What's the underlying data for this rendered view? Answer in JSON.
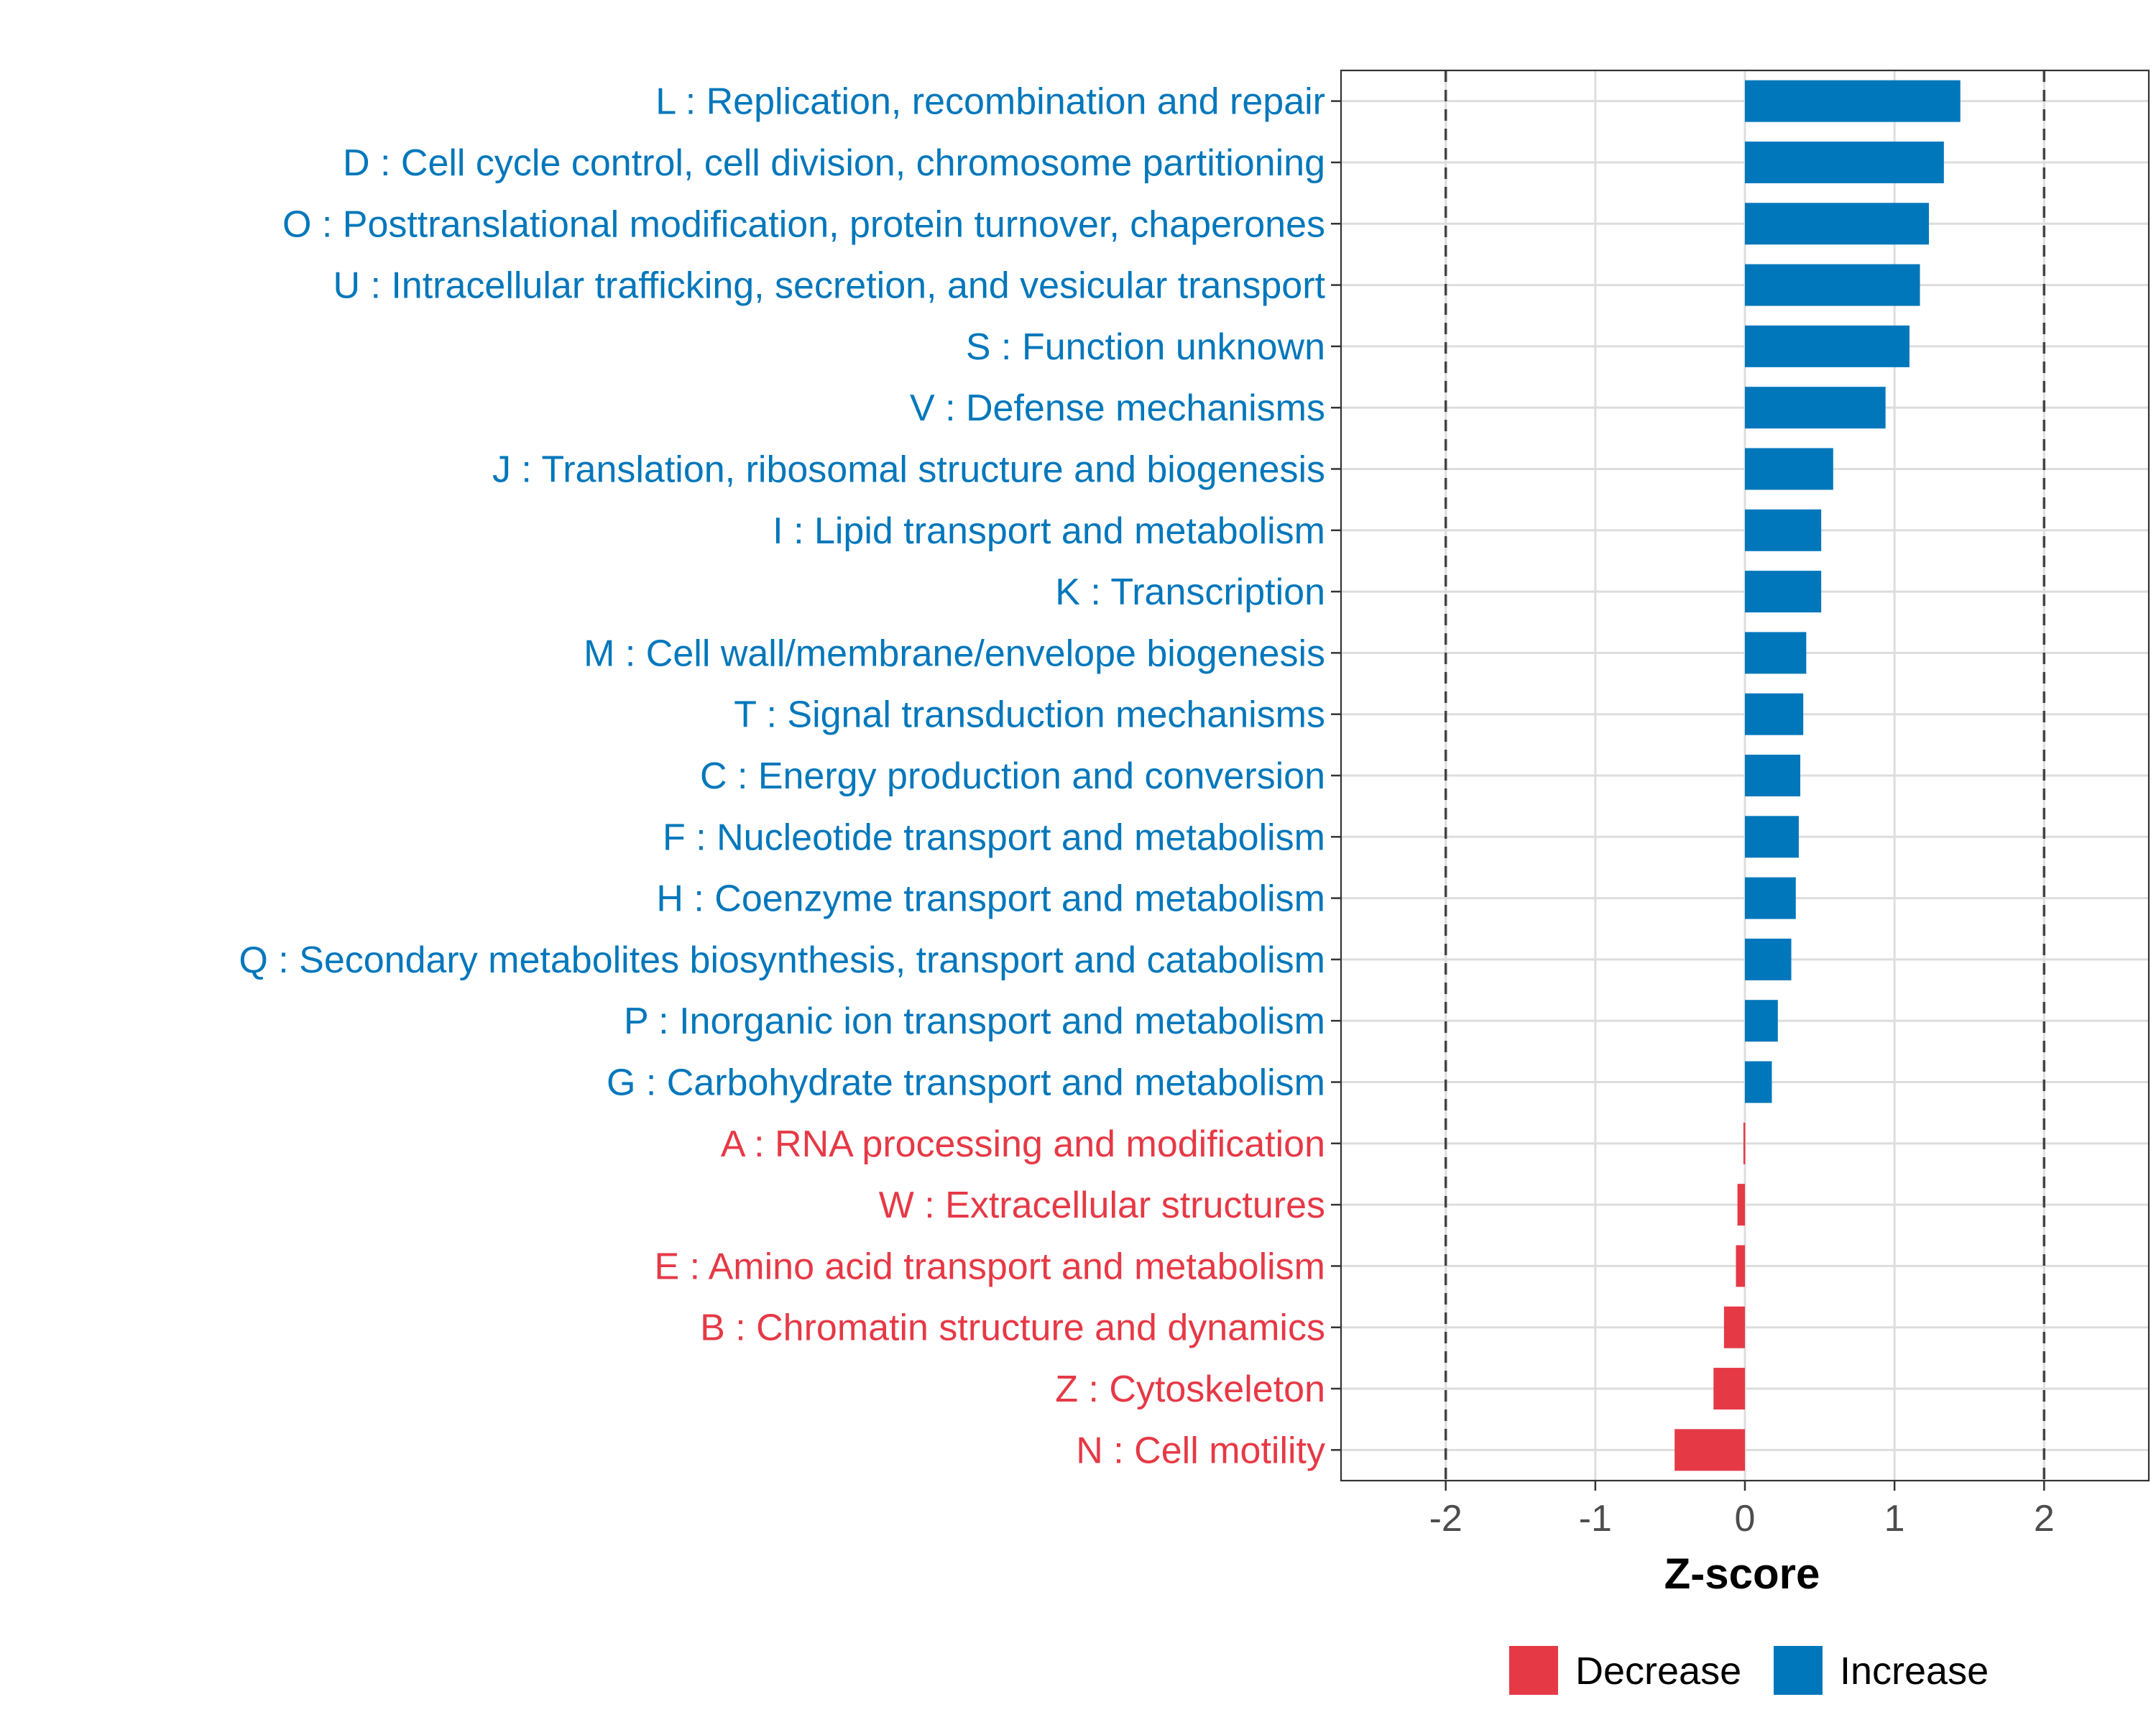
{
  "chart_data": {
    "type": "bar",
    "orientation": "horizontal",
    "xlabel": "Z-score",
    "ylabel": "",
    "xlim": [
      -2.7,
      2.7
    ],
    "xticks": [
      -2,
      -1,
      0,
      1,
      2
    ],
    "xtick_labels": [
      "-2",
      "-1",
      "0",
      "1",
      "2"
    ],
    "reference_lines": [
      -2,
      2
    ],
    "grid": true,
    "legend_position": "bottom",
    "colors": {
      "Decrease": "#E63946",
      "Increase": "#0077BB"
    },
    "legend": [
      "Decrease",
      "Increase"
    ],
    "categories": [
      "L : Replication, recombination and repair",
      "D : Cell cycle control, cell division, chromosome partitioning",
      "O : Posttranslational modification, protein turnover, chaperones",
      "U : Intracellular trafficking, secretion, and vesicular transport",
      "S : Function unknown",
      "V : Defense mechanisms",
      "J : Translation, ribosomal structure and biogenesis",
      "I : Lipid transport and metabolism",
      "K : Transcription",
      "M : Cell wall/membrane/envelope biogenesis",
      "T : Signal transduction mechanisms",
      "C : Energy production and conversion",
      "F : Nucleotide transport and metabolism",
      "H : Coenzyme transport and metabolism",
      "Q : Secondary metabolites biosynthesis, transport and catabolism",
      "P : Inorganic ion transport and metabolism",
      "G : Carbohydrate transport and metabolism",
      "A : RNA processing and modification",
      "W : Extracellular structures",
      "E : Amino acid transport and metabolism",
      "B : Chromatin structure and dynamics",
      "Z : Cytoskeleton",
      "N : Cell motility"
    ],
    "values": [
      1.44,
      1.33,
      1.23,
      1.17,
      1.1,
      0.94,
      0.59,
      0.51,
      0.51,
      0.41,
      0.39,
      0.37,
      0.36,
      0.34,
      0.31,
      0.22,
      0.18,
      -0.01,
      -0.05,
      -0.06,
      -0.14,
      -0.21,
      -0.47
    ],
    "groups": [
      "Increase",
      "Increase",
      "Increase",
      "Increase",
      "Increase",
      "Increase",
      "Increase",
      "Increase",
      "Increase",
      "Increase",
      "Increase",
      "Increase",
      "Increase",
      "Increase",
      "Increase",
      "Increase",
      "Increase",
      "Decrease",
      "Decrease",
      "Decrease",
      "Decrease",
      "Decrease",
      "Decrease"
    ]
  }
}
